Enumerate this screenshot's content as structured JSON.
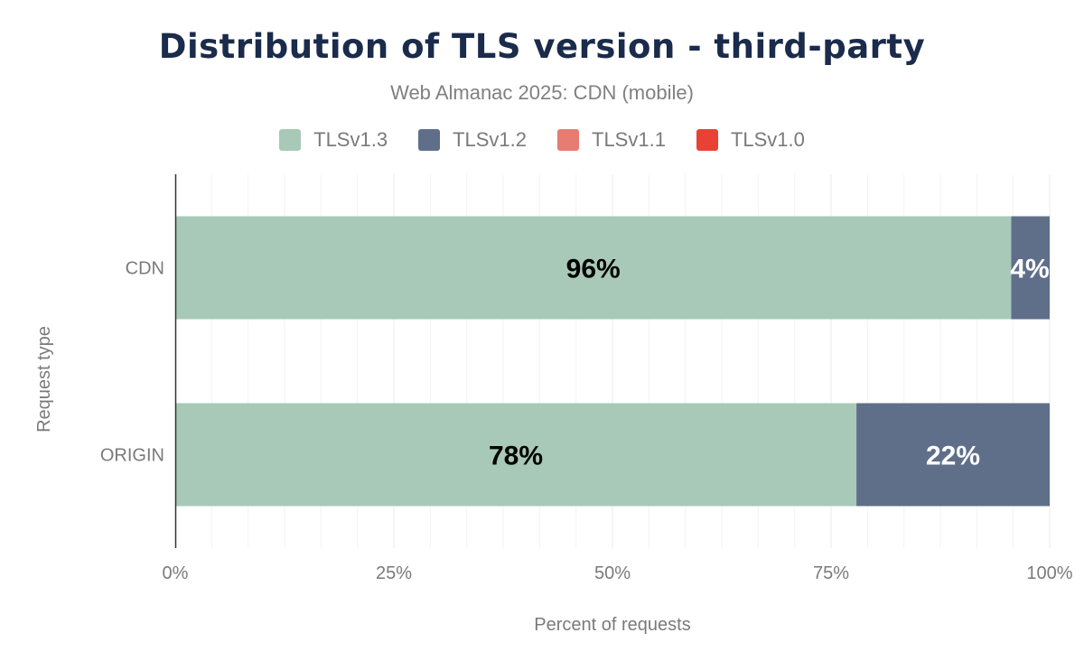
{
  "chart_data": {
    "type": "bar",
    "orientation": "horizontal",
    "stacked": true,
    "title": "Distribution of TLS version - third-party",
    "subtitle": "Web Almanac 2025: CDN (mobile)",
    "xlabel": "Percent of requests",
    "ylabel": "Request type",
    "xlim": [
      0,
      100
    ],
    "x_ticks": [
      "0%",
      "25%",
      "50%",
      "75%",
      "100%"
    ],
    "grid": true,
    "legend_placement": "top",
    "categories": [
      "CDN",
      "ORIGIN"
    ],
    "series": [
      {
        "name": "TLSv1.3",
        "color": "#a8c9b8",
        "values": [
          95.6,
          77.9
        ],
        "labels": [
          "96%",
          "78%"
        ],
        "label_color": "#000000"
      },
      {
        "name": "TLSv1.2",
        "color": "#5f6f8a",
        "values": [
          4.4,
          22.1
        ],
        "labels": [
          "4%",
          "22%"
        ],
        "label_color": "#ffffff"
      },
      {
        "name": "TLSv1.1",
        "color": "#e77c73",
        "values": [
          0,
          0
        ],
        "labels": [
          "",
          ""
        ],
        "label_color": "#000000"
      },
      {
        "name": "TLSv1.0",
        "color": "#e94235",
        "values": [
          0,
          0
        ],
        "labels": [
          "",
          ""
        ],
        "label_color": "#000000"
      }
    ]
  }
}
